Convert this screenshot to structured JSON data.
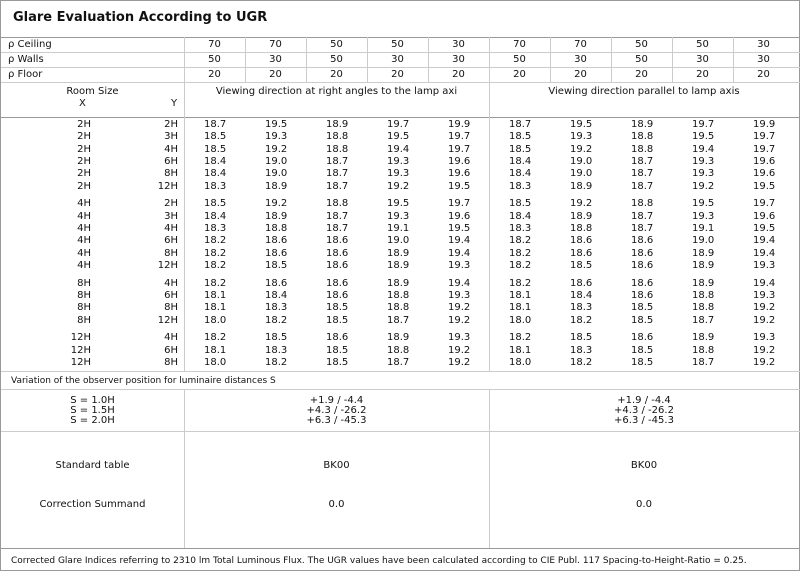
{
  "title": "Glare Evaluation According to UGR",
  "reflectances": [
    {
      "label": "ρ  Ceiling",
      "values": [
        "70",
        "70",
        "50",
        "50",
        "30",
        "70",
        "70",
        "50",
        "50",
        "30"
      ]
    },
    {
      "label": "ρ  Walls",
      "values": [
        "50",
        "30",
        "50",
        "30",
        "30",
        "50",
        "30",
        "50",
        "30",
        "30"
      ]
    },
    {
      "label": "ρ  Floor",
      "values": [
        "20",
        "20",
        "20",
        "20",
        "20",
        "20",
        "20",
        "20",
        "20",
        "20"
      ]
    }
  ],
  "header": {
    "room_size": "Room Size",
    "x": "X",
    "y": "Y",
    "dir_right_angles": "Viewing direction at right angles to the lamp axi",
    "dir_parallel": "Viewing direction parallel to lamp axis"
  },
  "groups": [
    {
      "rows": [
        {
          "x": "2H",
          "y": "2H",
          "v": [
            "18.7",
            "19.5",
            "18.9",
            "19.7",
            "19.9",
            "18.7",
            "19.5",
            "18.9",
            "19.7",
            "19.9"
          ]
        },
        {
          "x": "2H",
          "y": "3H",
          "v": [
            "18.5",
            "19.3",
            "18.8",
            "19.5",
            "19.7",
            "18.5",
            "19.3",
            "18.8",
            "19.5",
            "19.7"
          ]
        },
        {
          "x": "2H",
          "y": "4H",
          "v": [
            "18.5",
            "19.2",
            "18.8",
            "19.4",
            "19.7",
            "18.5",
            "19.2",
            "18.8",
            "19.4",
            "19.7"
          ]
        },
        {
          "x": "2H",
          "y": "6H",
          "v": [
            "18.4",
            "19.0",
            "18.7",
            "19.3",
            "19.6",
            "18.4",
            "19.0",
            "18.7",
            "19.3",
            "19.6"
          ]
        },
        {
          "x": "2H",
          "y": "8H",
          "v": [
            "18.4",
            "19.0",
            "18.7",
            "19.3",
            "19.6",
            "18.4",
            "19.0",
            "18.7",
            "19.3",
            "19.6"
          ]
        },
        {
          "x": "2H",
          "y": "12H",
          "v": [
            "18.3",
            "18.9",
            "18.7",
            "19.2",
            "19.5",
            "18.3",
            "18.9",
            "18.7",
            "19.2",
            "19.5"
          ]
        }
      ]
    },
    {
      "rows": [
        {
          "x": "4H",
          "y": "2H",
          "v": [
            "18.5",
            "19.2",
            "18.8",
            "19.5",
            "19.7",
            "18.5",
            "19.2",
            "18.8",
            "19.5",
            "19.7"
          ]
        },
        {
          "x": "4H",
          "y": "3H",
          "v": [
            "18.4",
            "18.9",
            "18.7",
            "19.3",
            "19.6",
            "18.4",
            "18.9",
            "18.7",
            "19.3",
            "19.6"
          ]
        },
        {
          "x": "4H",
          "y": "4H",
          "v": [
            "18.3",
            "18.8",
            "18.7",
            "19.1",
            "19.5",
            "18.3",
            "18.8",
            "18.7",
            "19.1",
            "19.5"
          ]
        },
        {
          "x": "4H",
          "y": "6H",
          "v": [
            "18.2",
            "18.6",
            "18.6",
            "19.0",
            "19.4",
            "18.2",
            "18.6",
            "18.6",
            "19.0",
            "19.4"
          ]
        },
        {
          "x": "4H",
          "y": "8H",
          "v": [
            "18.2",
            "18.6",
            "18.6",
            "18.9",
            "19.4",
            "18.2",
            "18.6",
            "18.6",
            "18.9",
            "19.4"
          ]
        },
        {
          "x": "4H",
          "y": "12H",
          "v": [
            "18.2",
            "18.5",
            "18.6",
            "18.9",
            "19.3",
            "18.2",
            "18.5",
            "18.6",
            "18.9",
            "19.3"
          ]
        }
      ]
    },
    {
      "rows": [
        {
          "x": "8H",
          "y": "4H",
          "v": [
            "18.2",
            "18.6",
            "18.6",
            "18.9",
            "19.4",
            "18.2",
            "18.6",
            "18.6",
            "18.9",
            "19.4"
          ]
        },
        {
          "x": "8H",
          "y": "6H",
          "v": [
            "18.1",
            "18.4",
            "18.6",
            "18.8",
            "19.3",
            "18.1",
            "18.4",
            "18.6",
            "18.8",
            "19.3"
          ]
        },
        {
          "x": "8H",
          "y": "8H",
          "v": [
            "18.1",
            "18.3",
            "18.5",
            "18.8",
            "19.2",
            "18.1",
            "18.3",
            "18.5",
            "18.8",
            "19.2"
          ]
        },
        {
          "x": "8H",
          "y": "12H",
          "v": [
            "18.0",
            "18.2",
            "18.5",
            "18.7",
            "19.2",
            "18.0",
            "18.2",
            "18.5",
            "18.7",
            "19.2"
          ]
        }
      ]
    },
    {
      "rows": [
        {
          "x": "12H",
          "y": "4H",
          "v": [
            "18.2",
            "18.5",
            "18.6",
            "18.9",
            "19.3",
            "18.2",
            "18.5",
            "18.6",
            "18.9",
            "19.3"
          ]
        },
        {
          "x": "12H",
          "y": "6H",
          "v": [
            "18.1",
            "18.3",
            "18.5",
            "18.8",
            "19.2",
            "18.1",
            "18.3",
            "18.5",
            "18.8",
            "19.2"
          ]
        },
        {
          "x": "12H",
          "y": "8H",
          "v": [
            "18.0",
            "18.2",
            "18.5",
            "18.7",
            "19.2",
            "18.0",
            "18.2",
            "18.5",
            "18.7",
            "19.2"
          ]
        }
      ]
    }
  ],
  "variation": {
    "label": "Variation of the observer position for luminaire distances S",
    "s_values": [
      "S = 1.0H",
      "S = 1.5H",
      "S = 2.0H"
    ],
    "right_angles": [
      "+1.9 / -4.4",
      "+4.3 / -26.2",
      "+6.3 / -45.3"
    ],
    "parallel": [
      "+1.9 / -4.4",
      "+4.3 / -26.2",
      "+6.3 / -45.3"
    ]
  },
  "standard_table": {
    "label": "Standard table",
    "right_angles": "BK00",
    "parallel": "BK00"
  },
  "correction_summand": {
    "label": "Correction Summand",
    "right_angles": "0.0",
    "parallel": "0.0"
  },
  "footer": "Corrected Glare Indices referring to 2310 lm Total Luminous Flux. The UGR values have been calculated according to CIE Publ. 117    Spacing-to-Height-Ratio = 0.25."
}
